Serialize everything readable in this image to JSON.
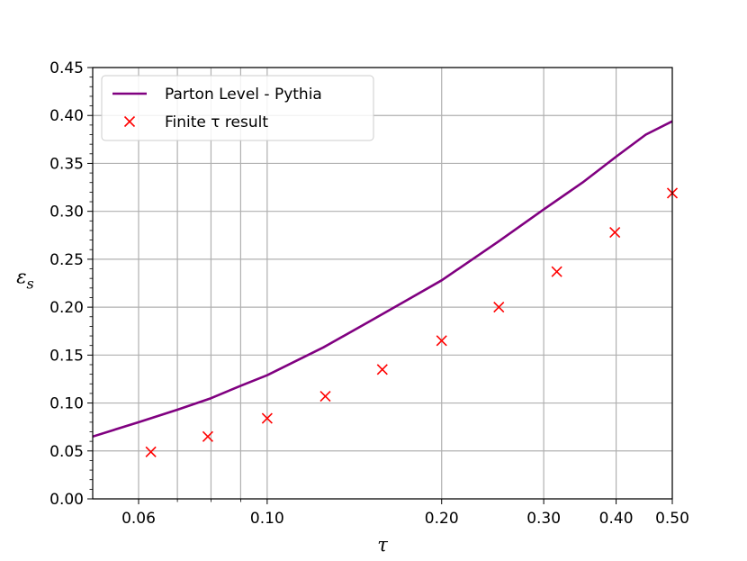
{
  "chart_data": {
    "type": "line",
    "xscale": "log",
    "xlim": [
      0.05,
      0.5
    ],
    "ylim": [
      0.0,
      0.45
    ],
    "xlabel": "τ",
    "ylabel": "ε",
    "ylabel_sub": "s",
    "grid": true,
    "legend_position": "upper-left",
    "x_ticks": [
      {
        "value": 0.06,
        "label": "0.06"
      },
      {
        "value": 0.1,
        "label": "0.10"
      },
      {
        "value": 0.2,
        "label": "0.20"
      },
      {
        "value": 0.3,
        "label": "0.30"
      },
      {
        "value": 0.4,
        "label": "0.40"
      },
      {
        "value": 0.5,
        "label": "0.50"
      }
    ],
    "x_minor_grid": [
      0.07,
      0.08,
      0.09
    ],
    "y_ticks": [
      0.0,
      0.05,
      0.1,
      0.15,
      0.2,
      0.25,
      0.3,
      0.35,
      0.4,
      0.45
    ],
    "y_tick_labels": [
      "0.00",
      "0.05",
      "0.10",
      "0.15",
      "0.20",
      "0.25",
      "0.30",
      "0.35",
      "0.40",
      "0.45"
    ],
    "series": [
      {
        "name": "Parton Level - Pythia",
        "kind": "line",
        "color": "#800080",
        "x": [
          0.05,
          0.06,
          0.07,
          0.08,
          0.09,
          0.1,
          0.125,
          0.15,
          0.175,
          0.2,
          0.25,
          0.3,
          0.35,
          0.4,
          0.45,
          0.5
        ],
        "y": [
          0.065,
          0.08,
          0.093,
          0.105,
          0.118,
          0.129,
          0.158,
          0.185,
          0.208,
          0.228,
          0.268,
          0.302,
          0.33,
          0.357,
          0.38,
          0.394
        ]
      },
      {
        "name": "Finite τ result",
        "kind": "scatter",
        "marker": "x",
        "color": "#ff0000",
        "x": [
          0.063,
          0.079,
          0.1,
          0.126,
          0.158,
          0.2,
          0.251,
          0.316,
          0.398,
          0.5
        ],
        "y": [
          0.049,
          0.065,
          0.084,
          0.107,
          0.135,
          0.165,
          0.2,
          0.237,
          0.278,
          0.319
        ]
      }
    ],
    "legend": [
      {
        "label": "Parton Level - Pythia",
        "kind": "line",
        "color": "#800080"
      },
      {
        "label": "Finite τ result",
        "kind": "marker",
        "color": "#ff0000"
      }
    ]
  }
}
